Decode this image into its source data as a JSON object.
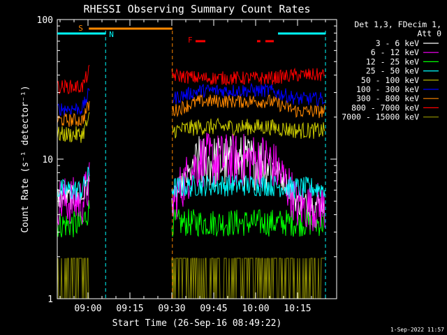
{
  "chart_data": {
    "type": "line",
    "title": "RHESSI Observing Summary Count Rates",
    "xlabel": "Start Time (26-Sep-16 08:49:22)",
    "ylabel": "Count Rate (s⁻¹ detector⁻¹)",
    "yscale": "log",
    "ylim": [
      1,
      100
    ],
    "xlim_min": [
      -11,
      89
    ],
    "ytick_labels": [
      "1",
      "10",
      "100"
    ],
    "xticks": [
      {
        "min": 0,
        "label": "09:00"
      },
      {
        "min": 15,
        "label": "09:15"
      },
      {
        "min": 30,
        "label": "09:30"
      },
      {
        "min": 45,
        "label": "09:45"
      },
      {
        "min": 60,
        "label": "10:00"
      },
      {
        "min": 75,
        "label": "10:15"
      }
    ],
    "legend_header": [
      "Det 1,3, FDecim 1,",
      "Att 0"
    ],
    "legend_position": "right",
    "series": [
      {
        "name": "3 - 6 keV",
        "color": "#ffffff",
        "pre": 5.3,
        "post": 4.8,
        "mid": 9.5
      },
      {
        "name": "6 - 12 keV",
        "color": "#ff00ff",
        "pre": 5.0,
        "post": 4.6,
        "mid": 9.8
      },
      {
        "name": "12 - 25 keV",
        "color": "#00ff00",
        "pre": 3.4,
        "post": 3.5,
        "mid": 3.5
      },
      {
        "name": "25 - 50 keV",
        "color": "#00ffff",
        "pre": 6.0,
        "post": 6.2,
        "mid": 6.5
      },
      {
        "name": "50 - 100 keV",
        "color": "#cccc00",
        "pre": 15,
        "post": 16,
        "mid": 17
      },
      {
        "name": "100 - 300 keV",
        "color": "#0000ff",
        "pre": 23,
        "post": 27,
        "mid": 31
      },
      {
        "name": "300 - 800 keV",
        "color": "#ff8800",
        "pre": 19,
        "post": 22,
        "mid": 26
      },
      {
        "name": "800 - 7000 keV",
        "color": "#ff0000",
        "pre": 33,
        "post": 40,
        "mid": 38
      },
      {
        "name": "7000 - 15000 keV",
        "color": "#888800",
        "pre": 1.4,
        "post": 1.4,
        "mid": 1.4
      }
    ],
    "data_gaps_min": [
      [
        0.6,
        29.8
      ]
    ],
    "flag_bars": [
      {
        "label": "S",
        "color": "#ff8800",
        "start_min": 0.3,
        "end_min": 30.2
      },
      {
        "label": "N",
        "color": "#00ffff",
        "start_min": -11,
        "end_min": 6.3
      },
      {
        "label": "",
        "color": "#00ffff",
        "start_min": 68.0,
        "end_min": 85.0
      },
      {
        "label": "F",
        "color": "#ff0000",
        "start_min": 38.5,
        "end_min": 42.0
      },
      {
        "label": "",
        "color": "#ff0000",
        "start_min": 60.5,
        "end_min": 61.7
      },
      {
        "label": "",
        "color": "#ff0000",
        "start_min": 63.5,
        "end_min": 66.5
      }
    ],
    "vertical_markers_min": [
      {
        "min": 6.3,
        "color": "#00ffff"
      },
      {
        "min": 30.2,
        "color": "#ff8800"
      },
      {
        "min": 85.0,
        "color": "#00ffff"
      }
    ]
  },
  "footer": {
    "timestamp": "1-Sep-2022 11:57"
  }
}
